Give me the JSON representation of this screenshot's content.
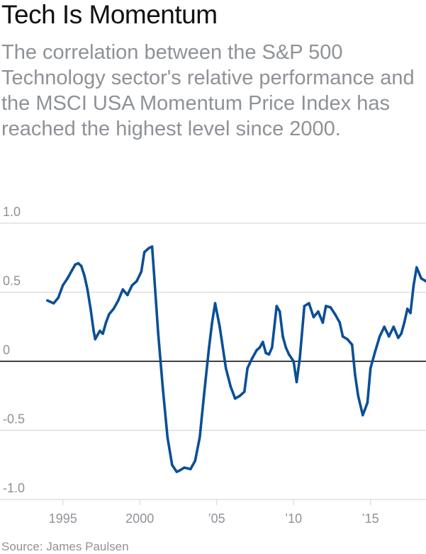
{
  "title": "Tech Is Momentum",
  "subtitle": "The correlation between the S&P 500 Technology sector's relative performance and the MSCI USA Momentum Price Index has reached the highest level since 2000.",
  "source": "Source: James Paulsen",
  "colors": {
    "line": "#0a4f96",
    "grid": "#d9d9d9",
    "zero": "#000000",
    "tick_text": "#8e9297"
  },
  "chart_data": {
    "type": "line",
    "title": "Tech Is Momentum",
    "xlabel": "",
    "ylabel": "",
    "xlim": [
      1994,
      2018.6
    ],
    "ylim": [
      -1.0,
      1.0
    ],
    "y_ticks": [
      {
        "value": 1.0,
        "label": "1.0"
      },
      {
        "value": 0.5,
        "label": "0.5"
      },
      {
        "value": 0,
        "label": "0"
      },
      {
        "value": -0.5,
        "label": "-0.5"
      },
      {
        "value": -1.0,
        "label": "-1.0"
      }
    ],
    "x_ticks": [
      {
        "value": 1995,
        "label": "1995"
      },
      {
        "value": 2000,
        "label": "2000"
      },
      {
        "value": 2005,
        "label": "’05"
      },
      {
        "value": 2010,
        "label": "’10"
      },
      {
        "value": 2015,
        "label": "’15"
      }
    ],
    "grid": true,
    "series": [
      {
        "x": [
          1994.0,
          1994.4,
          1994.7,
          1995.0,
          1995.3,
          1995.6,
          1995.8,
          1996.0,
          1996.2,
          1996.4,
          1996.6,
          1996.8,
          1997.0,
          1997.1,
          1997.2,
          1997.4,
          1997.6,
          1997.8,
          1998.0,
          1998.3,
          1998.6,
          1998.9,
          1999.2,
          1999.5,
          1999.8,
          2000.1,
          2000.3,
          2000.6,
          2000.8,
          2000.95,
          2001.2,
          2001.5,
          2001.8,
          2002.1,
          2002.4,
          2002.6,
          2002.9,
          2003.3,
          2003.6,
          2003.9,
          2004.2,
          2004.5,
          2004.7,
          2004.9,
          2005.2,
          2005.6,
          2005.9,
          2006.2,
          2006.5,
          2006.8,
          2007.0,
          2007.3,
          2007.6,
          2007.8,
          2008.0,
          2008.2,
          2008.4,
          2008.6,
          2008.9,
          2009.1,
          2009.3,
          2009.5,
          2009.7,
          2010.0,
          2010.2,
          2010.4,
          2010.7,
          2011.0,
          2011.3,
          2011.6,
          2011.9,
          2012.1,
          2012.4,
          2012.7,
          2013.0,
          2013.2,
          2013.5,
          2013.8,
          2014.0,
          2014.2,
          2014.5,
          2014.8,
          2015.0,
          2015.3,
          2015.6,
          2015.9,
          2016.2,
          2016.5,
          2016.8,
          2017.0,
          2017.2,
          2017.4,
          2017.6,
          2017.8,
          2018.0,
          2018.3,
          2018.6
        ],
        "values": [
          0.44,
          0.42,
          0.46,
          0.55,
          0.6,
          0.66,
          0.7,
          0.71,
          0.69,
          0.62,
          0.52,
          0.38,
          0.22,
          0.16,
          0.18,
          0.22,
          0.2,
          0.28,
          0.34,
          0.38,
          0.44,
          0.52,
          0.48,
          0.55,
          0.58,
          0.65,
          0.79,
          0.82,
          0.83,
          0.6,
          0.2,
          -0.2,
          -0.55,
          -0.75,
          -0.8,
          -0.79,
          -0.77,
          -0.78,
          -0.72,
          -0.55,
          -0.22,
          0.1,
          0.28,
          0.42,
          0.25,
          -0.05,
          -0.18,
          -0.27,
          -0.25,
          -0.22,
          -0.05,
          0.02,
          0.08,
          0.1,
          0.14,
          0.06,
          0.05,
          0.1,
          0.4,
          0.36,
          0.18,
          0.1,
          0.05,
          0.0,
          -0.15,
          0.02,
          0.4,
          0.42,
          0.32,
          0.36,
          0.28,
          0.4,
          0.39,
          0.34,
          0.28,
          0.18,
          0.16,
          0.12,
          -0.1,
          -0.25,
          -0.39,
          -0.3,
          -0.05,
          0.07,
          0.18,
          0.25,
          0.18,
          0.25,
          0.17,
          0.2,
          0.28,
          0.38,
          0.35,
          0.55,
          0.68,
          0.6,
          0.58
        ]
      }
    ]
  }
}
